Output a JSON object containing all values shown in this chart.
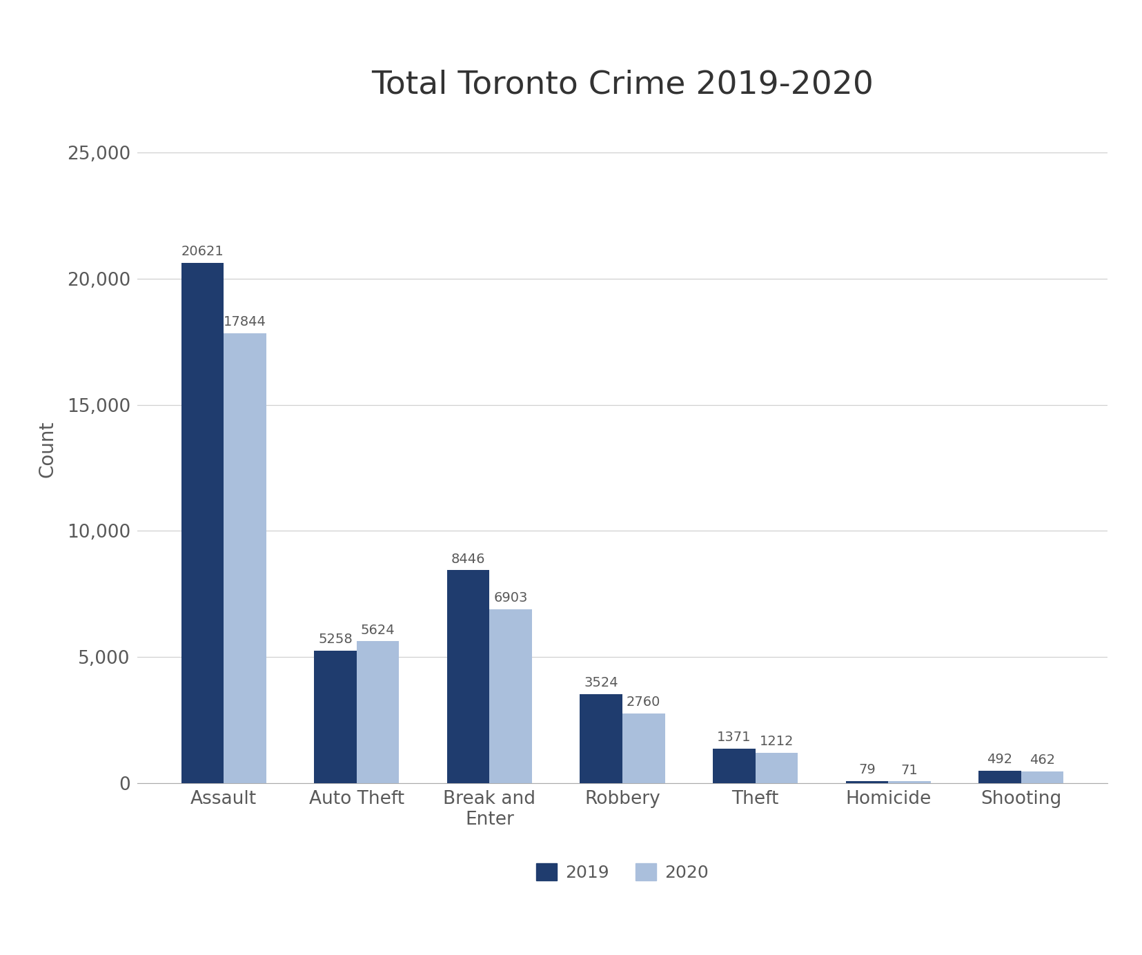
{
  "title": "Total Toronto Crime 2019-2020",
  "categories": [
    "Assault",
    "Auto Theft",
    "Break and\nEnter",
    "Robbery",
    "Theft",
    "Homicide",
    "Shooting"
  ],
  "values_2019": [
    20621,
    5258,
    8446,
    3524,
    1371,
    79,
    492
  ],
  "values_2020": [
    17844,
    5624,
    6903,
    2760,
    1212,
    71,
    462
  ],
  "color_2019": "#1f3c6e",
  "color_2020": "#aabfdc",
  "ylabel": "Count",
  "ylim": [
    0,
    26500
  ],
  "yticks": [
    0,
    5000,
    10000,
    15000,
    20000,
    25000
  ],
  "legend_labels": [
    "2019",
    "2020"
  ],
  "bar_width": 0.32,
  "title_fontsize": 34,
  "axis_label_fontsize": 20,
  "tick_fontsize": 19,
  "annotation_fontsize": 14,
  "legend_fontsize": 18,
  "background_color": "#ffffff",
  "grid_color": "#d0d0d0",
  "text_color": "#595959"
}
